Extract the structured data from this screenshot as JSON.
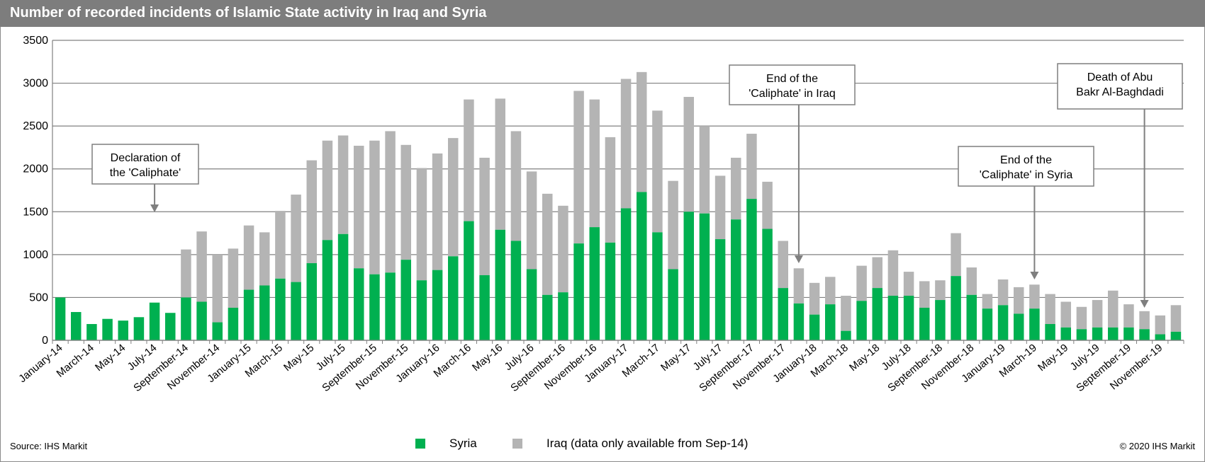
{
  "title": "Number of recorded incidents of Islamic State activity in Iraq and Syria",
  "source": "Source: IHS Markit",
  "copyright": "© 2020 IHS Markit",
  "colors": {
    "syria": "#00b050",
    "iraq": "#b4b4b4",
    "grid": "#808080",
    "title_bg": "#7d7d7d"
  },
  "legend": [
    {
      "key": "syria",
      "label": "Syria"
    },
    {
      "key": "iraq",
      "label": "Iraq (data only available from Sep-14)"
    }
  ],
  "chart_data": {
    "type": "bar",
    "stacked": true,
    "ylim": [
      0,
      3500
    ],
    "yticks": [
      0,
      500,
      1000,
      1500,
      2000,
      2500,
      3000,
      3500
    ],
    "grid": true,
    "legend_position": "bottom",
    "categories": [
      "January-14",
      "February-14",
      "March-14",
      "April-14",
      "May-14",
      "June-14",
      "July-14",
      "August-14",
      "September-14",
      "October-14",
      "November-14",
      "December-14",
      "January-15",
      "February-15",
      "March-15",
      "April-15",
      "May-15",
      "June-15",
      "July-15",
      "August-15",
      "September-15",
      "October-15",
      "November-15",
      "December-15",
      "January-16",
      "February-16",
      "March-16",
      "April-16",
      "May-16",
      "June-16",
      "July-16",
      "August-16",
      "September-16",
      "October-16",
      "November-16",
      "December-16",
      "January-17",
      "February-17",
      "March-17",
      "April-17",
      "May-17",
      "June-17",
      "July-17",
      "August-17",
      "September-17",
      "October-17",
      "November-17",
      "December-17",
      "January-18",
      "February-18",
      "March-18",
      "April-18",
      "May-18",
      "June-18",
      "July-18",
      "August-18",
      "September-18",
      "October-18",
      "November-18",
      "December-18",
      "January-19",
      "February-19",
      "March-19",
      "April-19",
      "May-19",
      "June-19",
      "July-19",
      "August-19",
      "September-19",
      "October-19",
      "November-19",
      "December-19"
    ],
    "xtick_labels": [
      "January-14",
      "March-14",
      "May-14",
      "July-14",
      "September-14",
      "November-14",
      "January-15",
      "March-15",
      "May-15",
      "July-15",
      "September-15",
      "November-15",
      "January-16",
      "March-16",
      "May-16",
      "July-16",
      "September-16",
      "November-16",
      "January-17",
      "March-17",
      "May-17",
      "July-17",
      "September-17",
      "November-17",
      "January-18",
      "March-18",
      "May-18",
      "July-18",
      "September-18",
      "November-18",
      "January-19",
      "March-19",
      "May-19",
      "July-19",
      "September-19",
      "November-19"
    ],
    "series": [
      {
        "name": "Syria",
        "values": [
          500,
          330,
          190,
          250,
          230,
          270,
          440,
          320,
          500,
          450,
          210,
          380,
          590,
          640,
          720,
          680,
          900,
          1170,
          1240,
          840,
          770,
          790,
          940,
          700,
          820,
          980,
          1390,
          760,
          1290,
          1160,
          830,
          530,
          560,
          1130,
          1320,
          1140,
          1540,
          1730,
          1260,
          830,
          1500,
          1480,
          1180,
          1410,
          1650,
          1300,
          610,
          430,
          300,
          420,
          110,
          460,
          610,
          520,
          520,
          380,
          470,
          750,
          530,
          370,
          410,
          310,
          370,
          190,
          150,
          130,
          150,
          150,
          150,
          130,
          70,
          100
        ]
      },
      {
        "name": "Iraq (data only available from Sep-14)",
        "values": [
          0,
          0,
          0,
          0,
          0,
          0,
          0,
          0,
          560,
          820,
          790,
          690,
          750,
          620,
          790,
          1020,
          1200,
          1160,
          1150,
          1430,
          1560,
          1650,
          1340,
          1310,
          1360,
          1380,
          1420,
          1370,
          1530,
          1280,
          1140,
          1180,
          1010,
          1780,
          1490,
          1230,
          1510,
          1400,
          1420,
          1030,
          1340,
          1020,
          740,
          720,
          760,
          550,
          550,
          410,
          370,
          320,
          410,
          410,
          360,
          530,
          280,
          310,
          230,
          500,
          320,
          170,
          300,
          310,
          280,
          350,
          300,
          260,
          320,
          430,
          270,
          210,
          220,
          310
        ]
      }
    ],
    "annotations": [
      {
        "lines": [
          "Declaration of",
          "the 'Caliphate'"
        ],
        "category": "July-14"
      },
      {
        "lines": [
          "End of the",
          "'Caliphate' in Iraq"
        ],
        "category": "December-17"
      },
      {
        "lines": [
          "End of the",
          "'Caliphate' in Syria"
        ],
        "category": "March-19"
      },
      {
        "lines": [
          "Death of Abu",
          "Bakr Al-Baghdadi"
        ],
        "category": "October-19"
      }
    ]
  }
}
